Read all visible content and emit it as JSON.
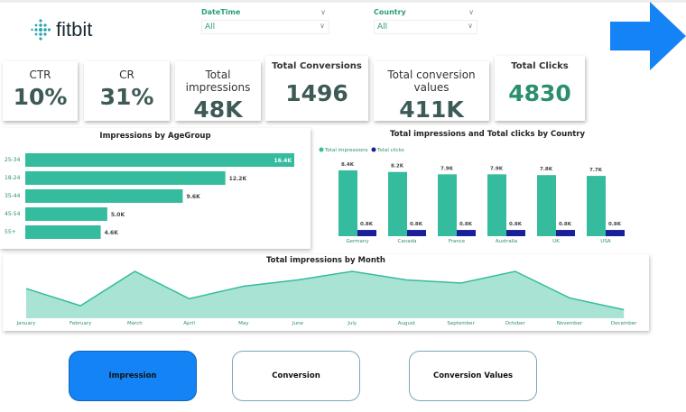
{
  "brand": {
    "name": "fitbit"
  },
  "filters": [
    {
      "label": "DateTime",
      "value": "All"
    },
    {
      "label": "Country",
      "value": "All"
    }
  ],
  "icons": {
    "next": "arrow-right-icon",
    "dropdown": "chevron-down-icon"
  },
  "colors": {
    "teal": "#35bc9e",
    "navy": "#1a1f9a",
    "accent": "#1483f5"
  },
  "kpis": [
    {
      "title": "CTR",
      "value": "10%"
    },
    {
      "title": "CR",
      "value": "31%"
    },
    {
      "title": "Total impressions",
      "value": "48K"
    },
    {
      "title": "Total Conversions",
      "value": "1496"
    },
    {
      "title": "Total conversion values",
      "value": "411K"
    },
    {
      "title": "Total Clicks",
      "value": "4830"
    }
  ],
  "buttons": [
    {
      "label": "Impression",
      "active": true
    },
    {
      "label": "Conversion",
      "active": false
    },
    {
      "label": "Conversion Values",
      "active": false
    }
  ],
  "chart_data": [
    {
      "type": "bar",
      "orientation": "horizontal",
      "title": "Impressions by AgeGroup",
      "categories": [
        "25-34",
        "18-24",
        "35-44",
        "45-54",
        "55+"
      ],
      "values": [
        16.4,
        12.2,
        9.6,
        5.0,
        4.6
      ],
      "labels": [
        "16.4K",
        "12.2K",
        "9.6K",
        "5.0K",
        "4.6K"
      ],
      "unit": "K"
    },
    {
      "type": "bar",
      "title": "Total impressions and Total clicks by Country",
      "categories": [
        "Germany",
        "Canada",
        "France",
        "Australia",
        "UK",
        "USA"
      ],
      "legend": "top-left",
      "series": [
        {
          "name": "Total impressions",
          "values": [
            8.4,
            8.2,
            7.9,
            7.9,
            7.8,
            7.7
          ],
          "labels": [
            "8.4K",
            "8.2K",
            "7.9K",
            "7.9K",
            "7.8K",
            "7.7K"
          ]
        },
        {
          "name": "Total clicks",
          "values": [
            0.8,
            0.8,
            0.8,
            0.8,
            0.8,
            0.8
          ],
          "labels": [
            "0.8K",
            "0.8K",
            "0.8K",
            "0.8K",
            "0.8K",
            "0.8K"
          ]
        }
      ]
    },
    {
      "type": "area",
      "title": "Total impressions by Month",
      "categories": [
        "January",
        "February",
        "March",
        "April",
        "May",
        "June",
        "July",
        "August",
        "September",
        "October",
        "November",
        "December"
      ],
      "values": [
        3.8,
        1.6,
        6.0,
        2.5,
        4.1,
        4.9,
        6.0,
        4.9,
        4.5,
        6.0,
        2.6,
        1.1
      ]
    }
  ]
}
